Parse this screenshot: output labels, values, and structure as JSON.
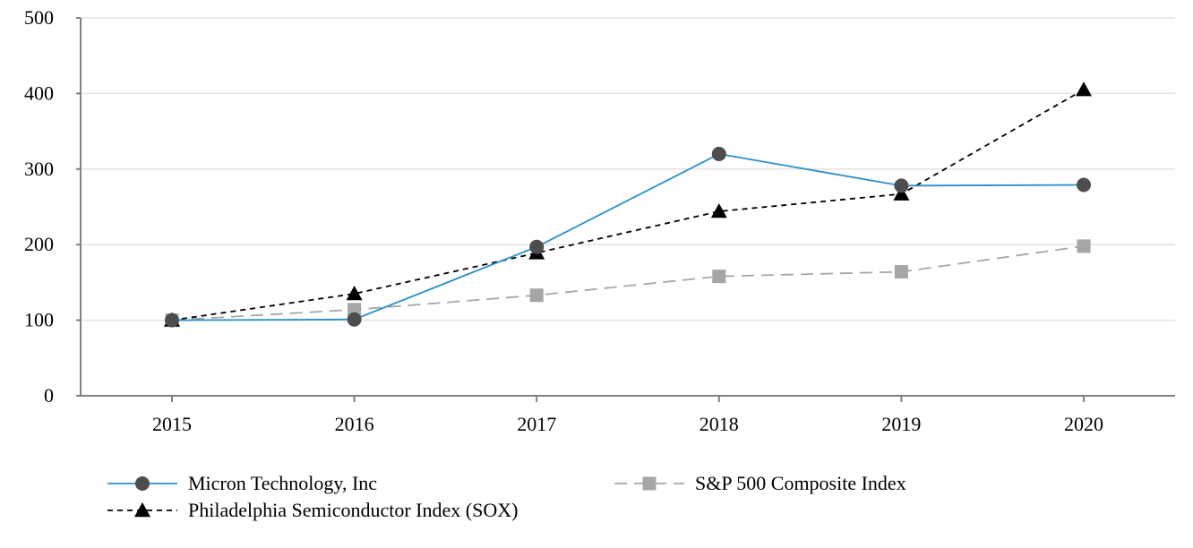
{
  "chart_data": {
    "type": "line",
    "title": "",
    "xlabel": "",
    "ylabel": "",
    "categories": [
      "2015",
      "2016",
      "2017",
      "2018",
      "2019",
      "2020"
    ],
    "ylim": [
      0,
      500
    ],
    "yticks": [
      0,
      100,
      200,
      300,
      400,
      500
    ],
    "ytick_labels": [
      "0",
      "100",
      "200",
      "300",
      "400",
      "500"
    ],
    "grid": true,
    "legend_position": "bottom",
    "series": [
      {
        "name": "Micron Technology, Inc",
        "values": [
          100,
          101,
          197,
          320,
          278,
          279
        ],
        "color": "#2a8fc7",
        "marker_color": "#4d4d4d",
        "marker": "circle",
        "dash": "solid",
        "legend_col": 0,
        "legend_row": 0
      },
      {
        "name": "S&P 500 Composite Index",
        "values": [
          100,
          114,
          133,
          158,
          164,
          198
        ],
        "color": "#a6a6a6",
        "marker_color": "#a6a6a6",
        "marker": "square",
        "dash": "long",
        "legend_col": 1,
        "legend_row": 0
      },
      {
        "name": "Philadelphia Semiconductor Index (SOX)",
        "values": [
          100,
          135,
          189,
          244,
          267,
          405
        ],
        "color": "#000000",
        "marker_color": "#000000",
        "marker": "triangle",
        "dash": "short",
        "legend_col": 0,
        "legend_row": 1
      }
    ]
  }
}
